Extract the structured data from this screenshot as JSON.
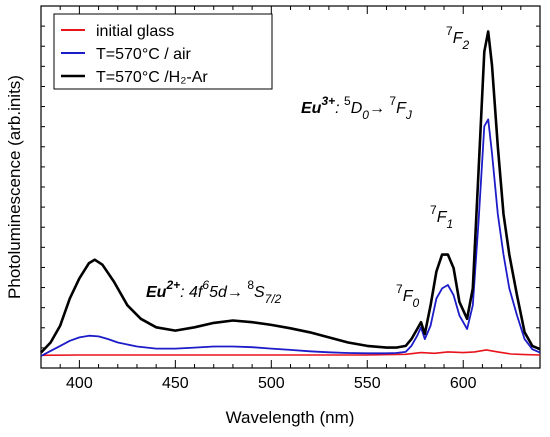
{
  "chart_data": {
    "type": "line",
    "title": "",
    "xlabel": "Wavelength (nm)",
    "ylabel": "Photoluminescence (arb.inits)",
    "xlim": [
      380,
      640
    ],
    "ylim": [
      0,
      1.0
    ],
    "x_ticks": [
      400,
      450,
      500,
      550,
      600
    ],
    "y_tick_labels": false,
    "legend_position": "top-left",
    "series": [
      {
        "name": "initial glass",
        "color": "#e8141c",
        "points": [
          [
            380,
            0.002
          ],
          [
            400,
            0.003
          ],
          [
            450,
            0.003
          ],
          [
            500,
            0.003
          ],
          [
            550,
            0.003
          ],
          [
            570,
            0.005
          ],
          [
            578,
            0.01
          ],
          [
            585,
            0.008
          ],
          [
            592,
            0.012
          ],
          [
            600,
            0.01
          ],
          [
            606,
            0.012
          ],
          [
            612,
            0.018
          ],
          [
            618,
            0.012
          ],
          [
            625,
            0.006
          ],
          [
            632,
            0.004
          ],
          [
            640,
            0.003
          ]
        ]
      },
      {
        "name": "T=570°C / air",
        "color": "#1c1cc8",
        "points": [
          [
            380,
            0.0
          ],
          [
            385,
            0.015
          ],
          [
            390,
            0.03
          ],
          [
            395,
            0.045
          ],
          [
            400,
            0.055
          ],
          [
            405,
            0.06
          ],
          [
            410,
            0.058
          ],
          [
            415,
            0.05
          ],
          [
            420,
            0.04
          ],
          [
            430,
            0.028
          ],
          [
            440,
            0.022
          ],
          [
            450,
            0.022
          ],
          [
            460,
            0.025
          ],
          [
            470,
            0.028
          ],
          [
            480,
            0.028
          ],
          [
            490,
            0.026
          ],
          [
            500,
            0.022
          ],
          [
            510,
            0.018
          ],
          [
            520,
            0.014
          ],
          [
            530,
            0.011
          ],
          [
            540,
            0.009
          ],
          [
            550,
            0.008
          ],
          [
            560,
            0.008
          ],
          [
            565,
            0.009
          ],
          [
            570,
            0.012
          ],
          [
            573,
            0.03
          ],
          [
            576,
            0.06
          ],
          [
            578,
            0.085
          ],
          [
            580,
            0.05
          ],
          [
            583,
            0.09
          ],
          [
            586,
            0.17
          ],
          [
            589,
            0.2
          ],
          [
            592,
            0.21
          ],
          [
            595,
            0.18
          ],
          [
            598,
            0.12
          ],
          [
            602,
            0.08
          ],
          [
            605,
            0.15
          ],
          [
            608,
            0.4
          ],
          [
            611,
            0.68
          ],
          [
            613,
            0.7
          ],
          [
            615,
            0.6
          ],
          [
            618,
            0.42
          ],
          [
            621,
            0.3
          ],
          [
            624,
            0.2
          ],
          [
            628,
            0.12
          ],
          [
            632,
            0.05
          ],
          [
            636,
            0.02
          ],
          [
            640,
            0.01
          ]
        ]
      },
      {
        "name": "T=570°C /H₂-Ar",
        "color": "#000000",
        "points": [
          [
            380,
            0.01
          ],
          [
            385,
            0.04
          ],
          [
            390,
            0.09
          ],
          [
            395,
            0.17
          ],
          [
            400,
            0.23
          ],
          [
            405,
            0.275
          ],
          [
            408,
            0.285
          ],
          [
            412,
            0.27
          ],
          [
            418,
            0.22
          ],
          [
            425,
            0.15
          ],
          [
            432,
            0.11
          ],
          [
            440,
            0.085
          ],
          [
            450,
            0.075
          ],
          [
            460,
            0.085
          ],
          [
            470,
            0.098
          ],
          [
            480,
            0.105
          ],
          [
            490,
            0.1
          ],
          [
            500,
            0.092
          ],
          [
            510,
            0.082
          ],
          [
            520,
            0.07
          ],
          [
            530,
            0.055
          ],
          [
            540,
            0.04
          ],
          [
            550,
            0.03
          ],
          [
            560,
            0.025
          ],
          [
            565,
            0.025
          ],
          [
            570,
            0.03
          ],
          [
            573,
            0.05
          ],
          [
            576,
            0.08
          ],
          [
            578,
            0.1
          ],
          [
            580,
            0.065
          ],
          [
            583,
            0.15
          ],
          [
            586,
            0.25
          ],
          [
            589,
            0.3
          ],
          [
            592,
            0.3
          ],
          [
            595,
            0.26
          ],
          [
            598,
            0.16
          ],
          [
            602,
            0.11
          ],
          [
            605,
            0.2
          ],
          [
            608,
            0.55
          ],
          [
            611,
            0.9
          ],
          [
            613,
            0.96
          ],
          [
            615,
            0.86
          ],
          [
            618,
            0.62
          ],
          [
            621,
            0.42
          ],
          [
            624,
            0.3
          ],
          [
            628,
            0.18
          ],
          [
            632,
            0.07
          ],
          [
            636,
            0.03
          ],
          [
            640,
            0.02
          ]
        ]
      }
    ],
    "annotations": {
      "eu3_ion": "Eu",
      "eu3_charge": "3+",
      "eu3_colon": ": ",
      "eu3_sup1": "5",
      "eu3_term1": "D",
      "eu3_sub1": "0",
      "eu3_arrow": "→ ",
      "eu3_sup2": "7",
      "eu3_term2": "F",
      "eu3_sub2": "J",
      "eu2_ion": "Eu",
      "eu2_charge": "2+",
      "eu2_colon": ": 4f",
      "eu2_sup1": "6",
      "eu2_mid": "5d→ ",
      "eu2_sup2": "8",
      "eu2_term": "S",
      "eu2_sub": "7/2",
      "f0_sup": "7",
      "f0_term": "F",
      "f0_sub": "0",
      "f1_sup": "7",
      "f1_term": "F",
      "f1_sub": "1",
      "f2_sup": "7",
      "f2_term": "F",
      "f2_sub": "2"
    }
  }
}
